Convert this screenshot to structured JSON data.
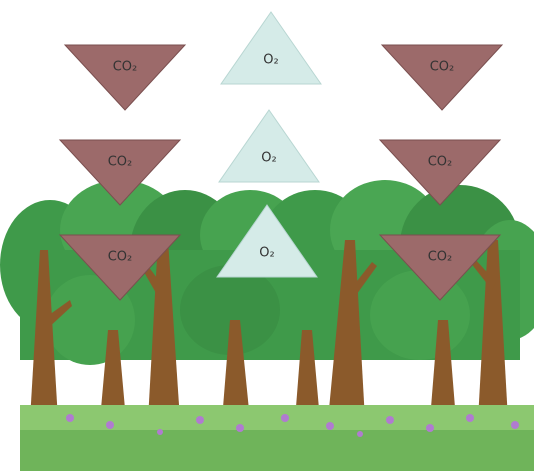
{
  "molecules": {
    "co2": [
      "CO₂",
      "CO₂",
      "CO₂",
      "CO₂",
      "CO₂",
      "CO₂"
    ],
    "o2": [
      "O₂",
      "O₂",
      "O₂"
    ]
  }
}
